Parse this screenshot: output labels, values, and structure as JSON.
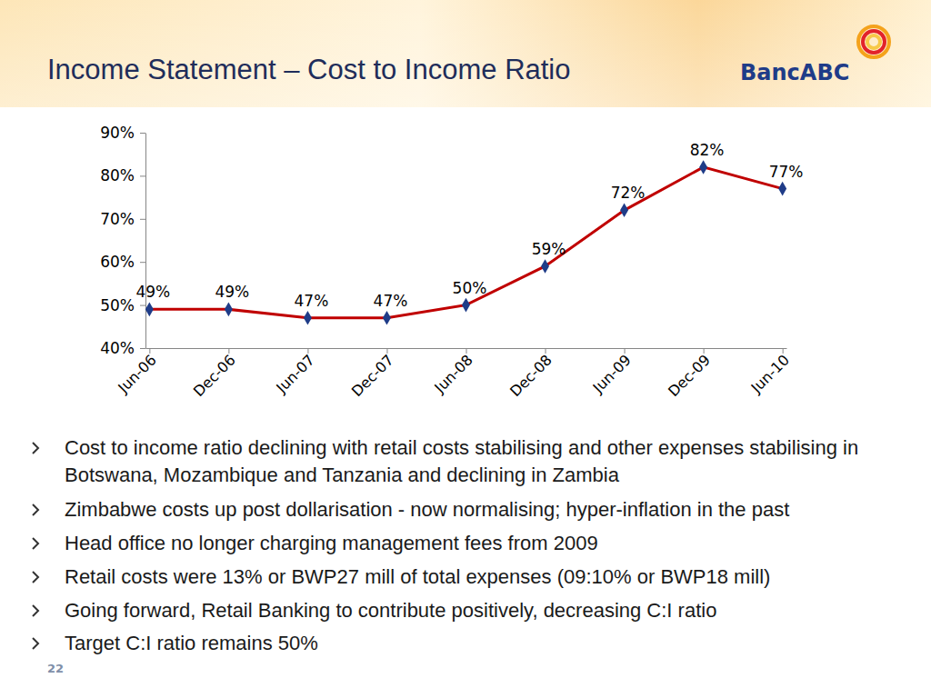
{
  "title": "Income Statement – Cost to Income Ratio",
  "logo": "BancABC",
  "chart_data": {
    "type": "line",
    "categories": [
      "Jun-06",
      "Dec-06",
      "Jun-07",
      "Dec-07",
      "Jun-08",
      "Dec-08",
      "Jun-09",
      "Dec-09",
      "Jun-10"
    ],
    "values": [
      49,
      49,
      47,
      47,
      50,
      59,
      72,
      82,
      77
    ],
    "value_labels": [
      "49%",
      "49%",
      "47%",
      "47%",
      "50%",
      "59%",
      "72%",
      "82%",
      "77%"
    ],
    "data_labels": true,
    "color": "#c00000",
    "marker": "diamond",
    "grid": false,
    "ylim": [
      40,
      90
    ],
    "yticks": [
      {
        "value": 40,
        "label": "40%"
      },
      {
        "value": 50,
        "label": "50%"
      },
      {
        "value": 60,
        "label": "60%"
      },
      {
        "value": 70,
        "label": "70%"
      },
      {
        "value": 80,
        "label": "80%"
      },
      {
        "value": 90,
        "label": "90%"
      }
    ]
  },
  "bullets": [
    "Cost to income ratio declining with retail costs stabilising and other expenses stabilising in Botswana, Mozambique and Tanzania and declining in Zambia",
    "Zimbabwe costs up post dollarisation - now normalising; hyper-inflation in the past",
    "Head office no longer charging management fees from 2009",
    "Retail costs were 13% or BWP27 mill of total expenses (09:10% or BWP18 mill)",
    "Going forward, Retail Banking to contribute positively, decreasing C:I ratio",
    "Target C:I ratio remains 50%"
  ],
  "page_number": 22
}
